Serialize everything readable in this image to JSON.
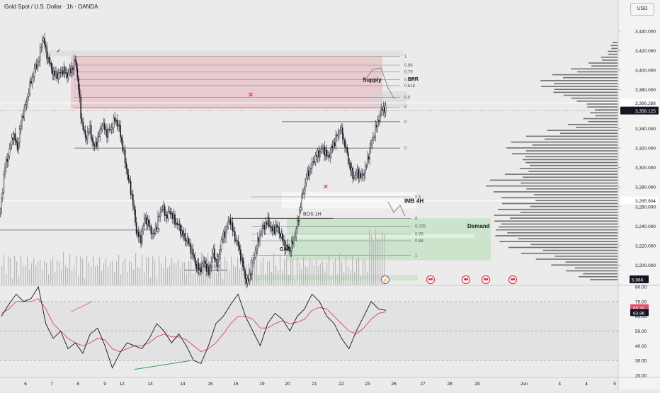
{
  "header": {
    "symbol_title": "Gold Spot / U.S. Dollar · 1h · OANDA",
    "currency_button": "USD"
  },
  "annotations": {
    "supply": "Supply",
    "bpr": "BPR",
    "demand": "Demand",
    "imb": "IMB 4H",
    "bos_upper": "BOS 1H",
    "bos_lower": "BOS 1H",
    "gap": "GAP",
    "fib_upper": [
      "1",
      "0.88",
      "0.79",
      "0.705",
      "0.618",
      "0.5",
      "0"
    ],
    "fib_mid_zero": "0",
    "fib_left_half": "0.5",
    "fib_lower": [
      "0.5",
      "0",
      "0.705",
      "0.79",
      "0.88",
      "1"
    ],
    "volume_label": "5.96K",
    "rsi_labels": [
      "65.30",
      "63.96"
    ],
    "price_labels": [
      "3,366.288",
      "3,358.125",
      "3,265.904"
    ]
  },
  "colors": {
    "supply_zone": "#e7c6c9",
    "demand_zone": "#c8e3c8",
    "candle": "#131722",
    "rsi_line": "#131722",
    "rsi_ma": "#e0506b",
    "cross_marker": "#e7336b",
    "event_icon": "#d6404c"
  },
  "chart_data": [
    {
      "type": "candlestick",
      "title": "Gold Spot / U.S. Dollar · 1h · OANDA",
      "ylabel": "USD",
      "ylim": [
        3180,
        3450
      ],
      "y_ticks": [
        3200,
        3220,
        3240,
        3260,
        3280,
        3300,
        3320,
        3340,
        3360,
        3380,
        3400,
        3420,
        3440
      ],
      "y_tick_labels": [
        "3,200.000",
        "3,220.000",
        "3,240.000",
        "3,260.000",
        "3,280.000",
        "3,300.000",
        "3,320.000",
        "3,340.000",
        "3,360.000",
        "3,380.000",
        "3,400.000",
        "3,420.000",
        "3,440.000"
      ],
      "x_tick_labels": [
        "6",
        "7",
        "8",
        "9",
        "12",
        "13",
        "14",
        "15",
        "16",
        "19",
        "20",
        "21",
        "22",
        "23",
        "26",
        "27",
        "28",
        "29",
        "Jun",
        "3",
        "4",
        "5"
      ],
      "price_path": [
        [
          0,
          3255
        ],
        [
          6,
          3300
        ],
        [
          12,
          3315
        ],
        [
          18,
          3335
        ],
        [
          24,
          3320
        ],
        [
          30,
          3350
        ],
        [
          36,
          3365
        ],
        [
          42,
          3385
        ],
        [
          48,
          3400
        ],
        [
          54,
          3410
        ],
        [
          60,
          3435
        ],
        [
          64,
          3420
        ],
        [
          70,
          3405
        ],
        [
          76,
          3395
        ],
        [
          82,
          3395
        ],
        [
          88,
          3400
        ],
        [
          94,
          3395
        ],
        [
          100,
          3400
        ],
        [
          106,
          3410
        ],
        [
          110,
          3385
        ],
        [
          114,
          3350
        ],
        [
          120,
          3330
        ],
        [
          126,
          3340
        ],
        [
          132,
          3320
        ],
        [
          138,
          3330
        ],
        [
          144,
          3345
        ],
        [
          150,
          3335
        ],
        [
          156,
          3340
        ],
        [
          162,
          3350
        ],
        [
          168,
          3340
        ],
        [
          174,
          3315
        ],
        [
          180,
          3290
        ],
        [
          186,
          3270
        ],
        [
          192,
          3235
        ],
        [
          198,
          3225
        ],
        [
          204,
          3250
        ],
        [
          210,
          3240
        ],
        [
          216,
          3230
        ],
        [
          222,
          3245
        ],
        [
          228,
          3260
        ],
        [
          234,
          3250
        ],
        [
          240,
          3255
        ],
        [
          246,
          3245
        ],
        [
          252,
          3240
        ],
        [
          258,
          3230
        ],
        [
          264,
          3225
        ],
        [
          270,
          3215
        ],
        [
          276,
          3200
        ],
        [
          282,
          3195
        ],
        [
          288,
          3205
        ],
        [
          294,
          3190
        ],
        [
          300,
          3215
        ],
        [
          306,
          3200
        ],
        [
          312,
          3225
        ],
        [
          318,
          3235
        ],
        [
          324,
          3248
        ],
        [
          330,
          3230
        ],
        [
          336,
          3220
        ],
        [
          342,
          3200
        ],
        [
          348,
          3180
        ],
        [
          354,
          3195
        ],
        [
          360,
          3215
        ],
        [
          366,
          3230
        ],
        [
          372,
          3240
        ],
        [
          378,
          3245
        ],
        [
          384,
          3235
        ],
        [
          390,
          3240
        ],
        [
          396,
          3230
        ],
        [
          402,
          3220
        ],
        [
          408,
          3215
        ],
        [
          414,
          3225
        ],
        [
          420,
          3245
        ],
        [
          426,
          3270
        ],
        [
          432,
          3290
        ],
        [
          438,
          3300
        ],
        [
          444,
          3310
        ],
        [
          450,
          3315
        ],
        [
          456,
          3320
        ],
        [
          462,
          3310
        ],
        [
          468,
          3320
        ],
        [
          474,
          3330
        ],
        [
          480,
          3340
        ],
        [
          486,
          3325
        ],
        [
          492,
          3305
        ],
        [
          498,
          3290
        ],
        [
          504,
          3295
        ],
        [
          510,
          3290
        ],
        [
          516,
          3300
        ],
        [
          522,
          3320
        ],
        [
          528,
          3335
        ],
        [
          534,
          3350
        ],
        [
          540,
          3362
        ],
        [
          545,
          3358
        ]
      ],
      "zones": {
        "supply": [
          3360,
          3414
        ],
        "bpr": [
          3362,
          3378
        ],
        "demand": [
          3205,
          3248
        ],
        "imb_4h": [
          3260,
          3275
        ]
      },
      "horizontal_levels": [
        3366.288,
        3358.125,
        3265.904,
        3347,
        3320,
        3248
      ],
      "volume_profile": "right-side horizontal histogram, peak near 3,240"
    },
    {
      "type": "line",
      "title": "RSI",
      "ylim": [
        20,
        80
      ],
      "y_ticks": [
        20,
        30,
        40,
        50,
        60,
        70,
        80
      ],
      "y_tick_labels": [
        "20.00",
        "30.00",
        "40.00",
        "50.00",
        "60.00",
        "70.00",
        "80.00"
      ],
      "bands": [
        30,
        50,
        70
      ],
      "series": [
        {
          "values": [
            60,
            68,
            75,
            70,
            72,
            80,
            55,
            45,
            50,
            38,
            42,
            35,
            48,
            52,
            40,
            25,
            35,
            42,
            40,
            38,
            45,
            55,
            50,
            42,
            48,
            40,
            30,
            28,
            40,
            55,
            60,
            68,
            75,
            60,
            50,
            40,
            55,
            62,
            58,
            50,
            60,
            65,
            75,
            70,
            60,
            55,
            45,
            38,
            50,
            60,
            70,
            65,
            64
          ]
        },
        {
          "values": [
            62,
            65,
            70,
            70,
            70,
            72,
            65,
            55,
            50,
            45,
            42,
            40,
            42,
            45,
            44,
            38,
            36,
            38,
            40,
            40,
            42,
            46,
            48,
            46,
            46,
            44,
            40,
            36,
            38,
            42,
            48,
            55,
            60,
            60,
            58,
            52,
            52,
            55,
            57,
            55,
            56,
            58,
            64,
            66,
            65,
            60,
            55,
            50,
            48,
            52,
            58,
            62,
            63
          ]
        }
      ]
    }
  ]
}
